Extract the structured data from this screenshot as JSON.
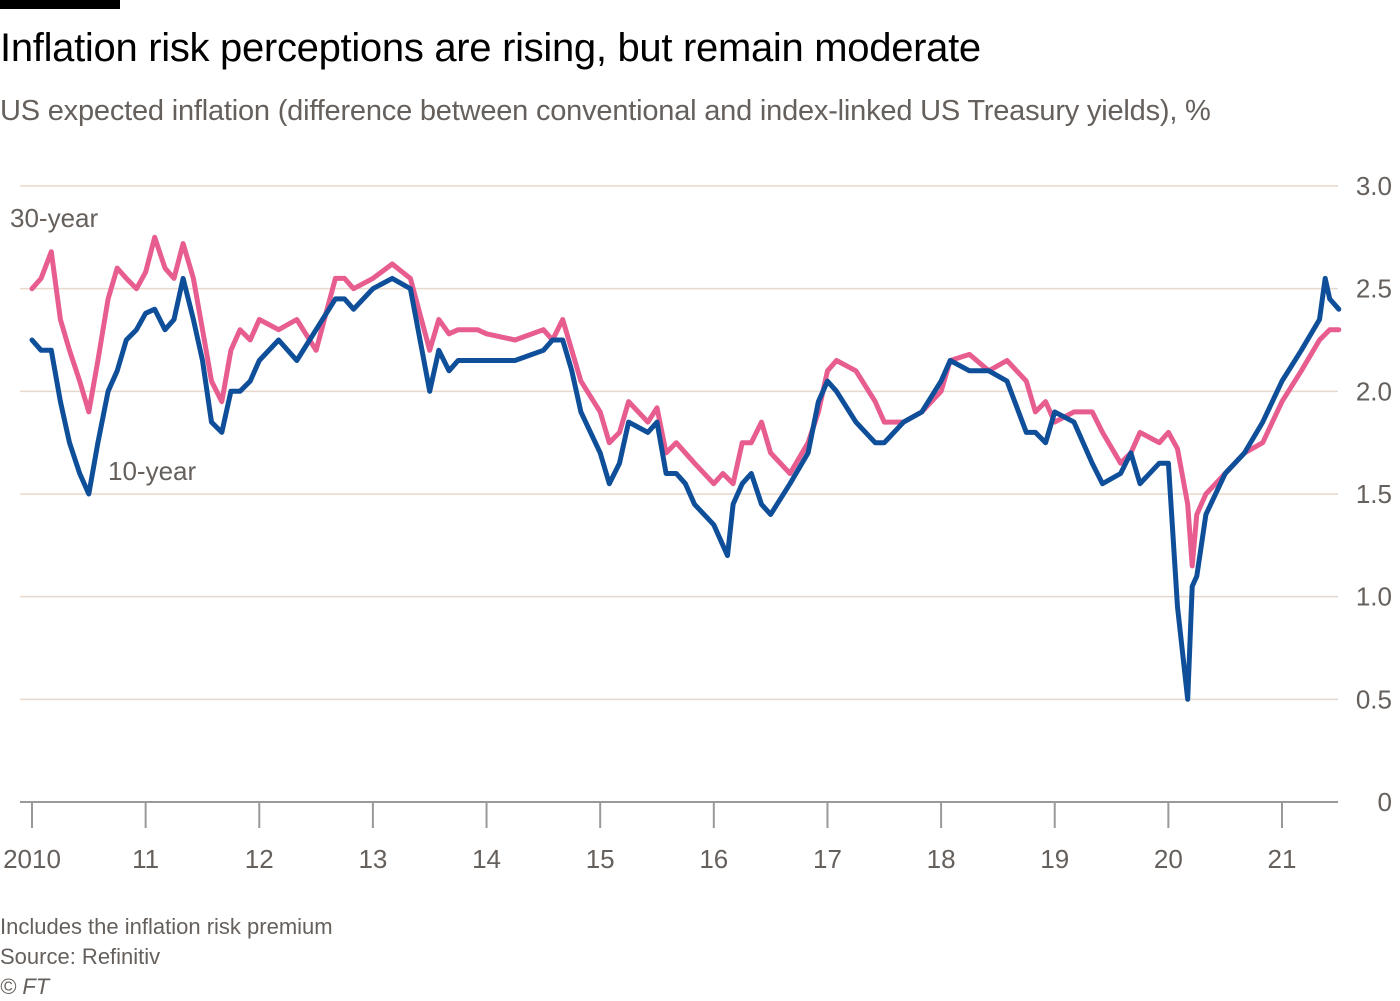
{
  "title": "Inflation risk perceptions are rising, but remain moderate",
  "subtitle": "US expected inflation (difference between conventional and index-linked US Treasury yields), %",
  "footnote": "Includes the inflation risk premium",
  "source": "Source: Refinitiv",
  "copyright": "© FT",
  "colors": {
    "thirty_year": "#e85d8f",
    "ten_year": "#0f4f99",
    "grid": "#e9d8cc",
    "axis": "#999999"
  },
  "chart_data": {
    "type": "line",
    "xlabel": "",
    "ylabel": "",
    "xlim": [
      2010.0,
      2021.5
    ],
    "ylim": [
      0,
      3.0
    ],
    "y_ticks": [
      0,
      0.5,
      1.0,
      1.5,
      2.0,
      2.5,
      3.0
    ],
    "y_tick_labels": [
      "0",
      "0.5",
      "1.0",
      "1.5",
      "2.0",
      "2.5",
      "3.0"
    ],
    "x_ticks": [
      2010,
      2011,
      2012,
      2013,
      2014,
      2015,
      2016,
      2017,
      2018,
      2019,
      2020,
      2021
    ],
    "x_tick_labels": [
      "2010",
      "11",
      "12",
      "13",
      "14",
      "15",
      "16",
      "17",
      "18",
      "19",
      "20",
      "21"
    ],
    "grid": true,
    "legend": "direct labels",
    "series": [
      {
        "name": "30-year",
        "color": "#e85d8f",
        "x": [
          2010.0,
          2010.08,
          2010.17,
          2010.25,
          2010.33,
          2010.42,
          2010.5,
          2010.58,
          2010.67,
          2010.75,
          2010.83,
          2010.92,
          2011.0,
          2011.08,
          2011.17,
          2011.25,
          2011.33,
          2011.42,
          2011.5,
          2011.58,
          2011.67,
          2011.75,
          2011.83,
          2011.92,
          2012.0,
          2012.17,
          2012.33,
          2012.5,
          2012.67,
          2012.75,
          2012.83,
          2013.0,
          2013.17,
          2013.33,
          2013.5,
          2013.58,
          2013.67,
          2013.75,
          2013.92,
          2014.0,
          2014.25,
          2014.5,
          2014.58,
          2014.67,
          2014.75,
          2014.83,
          2015.0,
          2015.08,
          2015.17,
          2015.25,
          2015.42,
          2015.5,
          2015.58,
          2015.67,
          2015.75,
          2015.83,
          2016.0,
          2016.08,
          2016.17,
          2016.25,
          2016.33,
          2016.42,
          2016.5,
          2016.67,
          2016.83,
          2016.92,
          2017.0,
          2017.08,
          2017.25,
          2017.42,
          2017.5,
          2017.67,
          2017.83,
          2018.0,
          2018.08,
          2018.25,
          2018.42,
          2018.58,
          2018.75,
          2018.83,
          2018.92,
          2019.0,
          2019.17,
          2019.33,
          2019.42,
          2019.58,
          2019.67,
          2019.75,
          2019.92,
          2020.0,
          2020.08,
          2020.17,
          2020.21,
          2020.25,
          2020.33,
          2020.5,
          2020.67,
          2020.83,
          2021.0,
          2021.17,
          2021.33,
          2021.42,
          2021.5
        ],
        "values": [
          2.5,
          2.55,
          2.68,
          2.35,
          2.2,
          2.05,
          1.9,
          2.15,
          2.45,
          2.6,
          2.55,
          2.5,
          2.58,
          2.75,
          2.6,
          2.55,
          2.72,
          2.55,
          2.3,
          2.05,
          1.95,
          2.2,
          2.3,
          2.25,
          2.35,
          2.3,
          2.35,
          2.2,
          2.55,
          2.55,
          2.5,
          2.55,
          2.62,
          2.55,
          2.2,
          2.35,
          2.28,
          2.3,
          2.3,
          2.28,
          2.25,
          2.3,
          2.25,
          2.35,
          2.2,
          2.05,
          1.9,
          1.75,
          1.8,
          1.95,
          1.85,
          1.92,
          1.7,
          1.75,
          1.7,
          1.65,
          1.55,
          1.6,
          1.55,
          1.75,
          1.75,
          1.85,
          1.7,
          1.6,
          1.75,
          1.9,
          2.1,
          2.15,
          2.1,
          1.95,
          1.85,
          1.85,
          1.9,
          2.0,
          2.15,
          2.18,
          2.1,
          2.15,
          2.05,
          1.9,
          1.95,
          1.85,
          1.9,
          1.9,
          1.8,
          1.65,
          1.7,
          1.8,
          1.75,
          1.8,
          1.72,
          1.45,
          1.15,
          1.4,
          1.5,
          1.6,
          1.7,
          1.75,
          1.95,
          2.1,
          2.25,
          2.3,
          2.3
        ]
      },
      {
        "name": "10-year",
        "color": "#0f4f99",
        "x": [
          2010.0,
          2010.08,
          2010.17,
          2010.25,
          2010.33,
          2010.42,
          2010.5,
          2010.58,
          2010.67,
          2010.75,
          2010.83,
          2010.92,
          2011.0,
          2011.08,
          2011.17,
          2011.25,
          2011.33,
          2011.42,
          2011.5,
          2011.58,
          2011.67,
          2011.75,
          2011.83,
          2011.92,
          2012.0,
          2012.17,
          2012.33,
          2012.5,
          2012.67,
          2012.75,
          2012.83,
          2013.0,
          2013.17,
          2013.33,
          2013.5,
          2013.58,
          2013.67,
          2013.75,
          2013.92,
          2014.0,
          2014.25,
          2014.5,
          2014.58,
          2014.67,
          2014.75,
          2014.83,
          2015.0,
          2015.08,
          2015.17,
          2015.25,
          2015.42,
          2015.5,
          2015.58,
          2015.67,
          2015.75,
          2015.83,
          2016.0,
          2016.08,
          2016.12,
          2016.17,
          2016.25,
          2016.33,
          2016.42,
          2016.5,
          2016.67,
          2016.83,
          2016.92,
          2017.0,
          2017.08,
          2017.25,
          2017.42,
          2017.5,
          2017.67,
          2017.83,
          2018.0,
          2018.08,
          2018.25,
          2018.42,
          2018.58,
          2018.75,
          2018.83,
          2018.92,
          2019.0,
          2019.17,
          2019.33,
          2019.42,
          2019.58,
          2019.67,
          2019.75,
          2019.92,
          2020.0,
          2020.08,
          2020.17,
          2020.21,
          2020.25,
          2020.33,
          2020.5,
          2020.67,
          2020.83,
          2021.0,
          2021.17,
          2021.33,
          2021.38,
          2021.42,
          2021.5
        ],
        "values": [
          2.25,
          2.2,
          2.2,
          1.95,
          1.75,
          1.6,
          1.5,
          1.75,
          2.0,
          2.1,
          2.25,
          2.3,
          2.38,
          2.4,
          2.3,
          2.35,
          2.55,
          2.35,
          2.15,
          1.85,
          1.8,
          2.0,
          2.0,
          2.05,
          2.15,
          2.25,
          2.15,
          2.3,
          2.45,
          2.45,
          2.4,
          2.5,
          2.55,
          2.5,
          2.0,
          2.2,
          2.1,
          2.15,
          2.15,
          2.15,
          2.15,
          2.2,
          2.25,
          2.25,
          2.1,
          1.9,
          1.7,
          1.55,
          1.65,
          1.85,
          1.8,
          1.85,
          1.6,
          1.6,
          1.55,
          1.45,
          1.35,
          1.25,
          1.2,
          1.45,
          1.55,
          1.6,
          1.45,
          1.4,
          1.55,
          1.7,
          1.95,
          2.05,
          2.0,
          1.85,
          1.75,
          1.75,
          1.85,
          1.9,
          2.05,
          2.15,
          2.1,
          2.1,
          2.05,
          1.8,
          1.8,
          1.75,
          1.9,
          1.85,
          1.65,
          1.55,
          1.6,
          1.7,
          1.55,
          1.65,
          1.65,
          0.95,
          0.5,
          1.05,
          1.1,
          1.4,
          1.6,
          1.7,
          1.85,
          2.05,
          2.2,
          2.35,
          2.55,
          2.45,
          2.4
        ]
      }
    ],
    "annotations": [
      {
        "text": "30-year",
        "series": "30-year"
      },
      {
        "text": "10-year",
        "series": "10-year"
      }
    ]
  }
}
